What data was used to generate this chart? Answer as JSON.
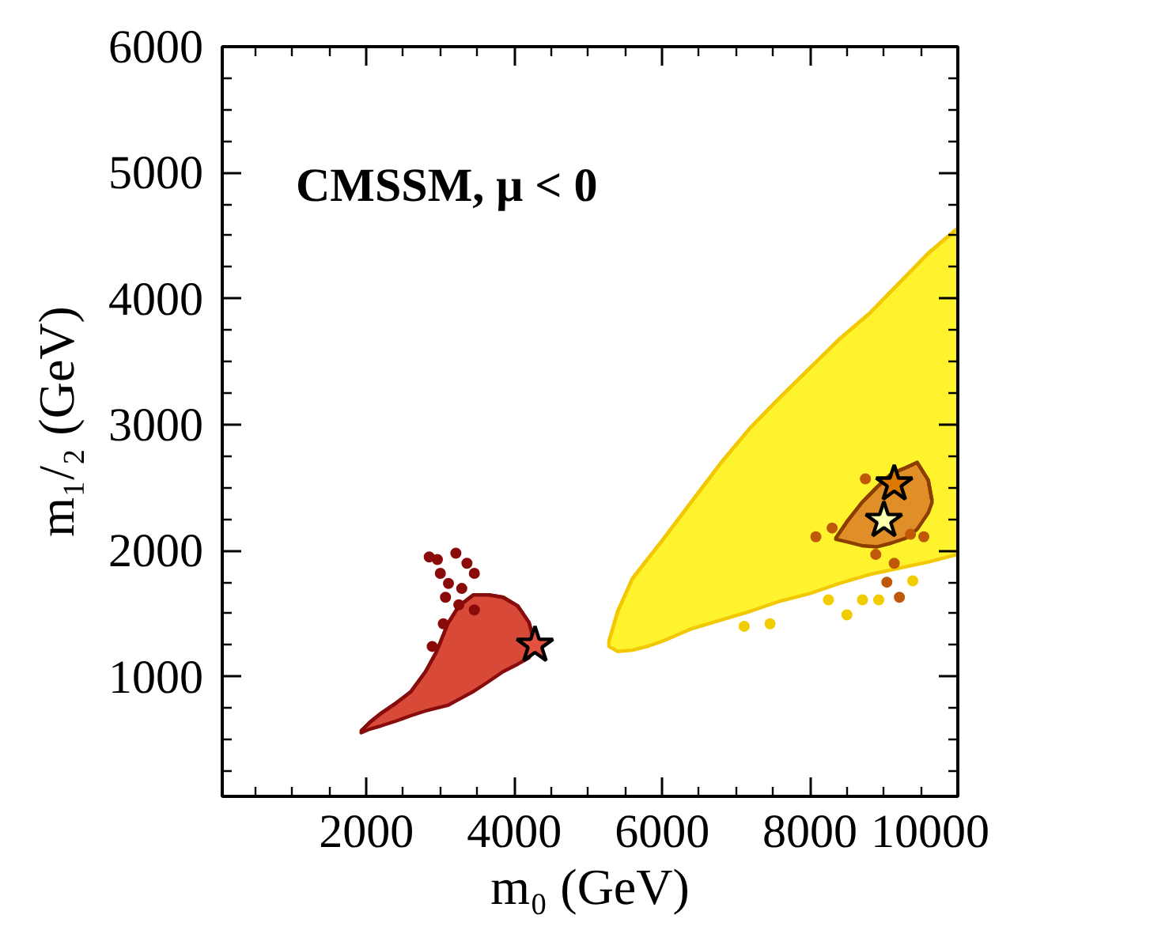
{
  "chart_data": {
    "type": "line",
    "xlabel": "m₀ (GeV)",
    "ylabel": "m₁/₂ (GeV)",
    "annotations": [
      "CMSSM, μ < 0"
    ],
    "xlim": [
      50,
      10000
    ],
    "ylim": [
      50,
      6000
    ],
    "xticks": [
      {
        "value": 500,
        "label": null
      },
      {
        "value": 1000,
        "label": null
      },
      {
        "value": 1500,
        "label": null
      },
      2000,
      {
        "value": 2500,
        "label": null
      },
      {
        "value": 3000,
        "label": null
      },
      {
        "value": 3500,
        "label": null
      },
      4000,
      {
        "value": 4500,
        "label": null
      },
      {
        "value": 5000,
        "label": null
      },
      {
        "value": 5500,
        "label": null
      },
      6000,
      {
        "value": 6500,
        "label": null
      },
      {
        "value": 7000,
        "label": null
      },
      {
        "value": 7500,
        "label": null
      },
      8000,
      {
        "value": 8500,
        "label": null
      },
      {
        "value": 9000,
        "label": null
      },
      {
        "value": 9500,
        "label": null
      },
      10000
    ],
    "yticks": [
      {
        "value": 250,
        "label": null
      },
      {
        "value": 500,
        "label": null
      },
      {
        "value": 750,
        "label": null
      },
      1000,
      {
        "value": 1250,
        "label": null
      },
      {
        "value": 1500,
        "label": null
      },
      {
        "value": 1750,
        "label": null
      },
      2000,
      {
        "value": 2250,
        "label": null
      },
      {
        "value": 2500,
        "label": null
      },
      {
        "value": 2750,
        "label": null
      },
      3000,
      {
        "value": 3250,
        "label": null
      },
      {
        "value": 3500,
        "label": null
      },
      {
        "value": 3750,
        "label": null
      },
      4000,
      {
        "value": 4250,
        "label": null
      },
      {
        "value": 4500,
        "label": null
      },
      {
        "value": 4750,
        "label": null
      },
      5000,
      {
        "value": 5250,
        "label": null
      },
      {
        "value": 5500,
        "label": null
      },
      {
        "value": 5750,
        "label": null
      },
      6000
    ],
    "series": [
      {
        "color": "#f2c800",
        "x": [
          5280,
          5400,
          5600,
          5800,
          6000,
          6400,
          6800,
          7200,
          7600,
          8000,
          8400,
          8800,
          9200,
          9600,
          10000
        ],
        "values": [
          1280,
          1520,
          1780,
          1930,
          2080,
          2390,
          2700,
          2980,
          3220,
          3450,
          3680,
          3880,
          4120,
          4360,
          4560
        ],
        "upper": [
          1280,
          1520,
          1780,
          1930,
          2080,
          2390,
          2700,
          2980,
          3220,
          3450,
          3680,
          3880,
          4120,
          4360,
          4560
        ],
        "lower": [
          1240,
          1200,
          1210,
          1240,
          1280,
          1380,
          1450,
          1520,
          1600,
          1660,
          1740,
          1810,
          1860,
          1910,
          1970
        ]
      },
      {
        "type": "scatter",
        "marker": "circle",
        "color": "#f0cc00",
        "x": [
          7110,
          7460,
          8250,
          8710,
          8930,
          9390,
          8500
        ],
        "values": [
          1400,
          1420,
          1610,
          1610,
          1610,
          1760,
          1490
        ]
      },
      {
        "color": "#8c3e00",
        "x": [
          8350,
          8500,
          8700,
          8900,
          9100,
          9300,
          9450,
          9600,
          9650
        ],
        "values": [
          2100,
          2230,
          2380,
          2500,
          2610,
          2660,
          2700,
          2560,
          2400
        ],
        "upper": [
          2100,
          2230,
          2380,
          2500,
          2610,
          2660,
          2700,
          2560,
          2400
        ],
        "lower": [
          2090,
          2070,
          2040,
          2030,
          2060,
          2100,
          2170,
          2300,
          2380
        ]
      },
      {
        "type": "scatter",
        "marker": "circle",
        "color": "#c0580a",
        "x": [
          8080,
          8300,
          8750,
          9040,
          9210,
          9140,
          9540,
          9360,
          8890
        ],
        "values": [
          2110,
          2180,
          2570,
          1750,
          1630,
          1900,
          2110,
          2130,
          1970
        ]
      },
      {
        "color": "#870c0c",
        "x": [
          1930,
          2050,
          2200,
          2400,
          2600,
          2800,
          2950,
          3100,
          3250,
          3450,
          3650,
          3850,
          4050,
          4200,
          4260
        ],
        "values": [
          570,
          640,
          710,
          790,
          880,
          1040,
          1200,
          1420,
          1560,
          1650,
          1650,
          1630,
          1560,
          1430,
          1300
        ],
        "upper": [
          570,
          640,
          710,
          790,
          880,
          1040,
          1200,
          1420,
          1560,
          1650,
          1650,
          1630,
          1560,
          1430,
          1300
        ],
        "lower": [
          555,
          585,
          610,
          648,
          690,
          728,
          750,
          772,
          820,
          883,
          960,
          1040,
          1100,
          1150,
          1210
        ]
      },
      {
        "type": "scatter",
        "marker": "circle",
        "color": "#8b0a0a",
        "x": [
          2850,
          3210,
          3360,
          3460,
          3000,
          3110,
          3290,
          3070,
          3250,
          3040,
          2890,
          3460,
          2960
        ],
        "values": [
          1950,
          1980,
          1900,
          1820,
          1820,
          1740,
          1700,
          1630,
          1570,
          1420,
          1240,
          1530,
          1930
        ]
      },
      {
        "type": "scatter",
        "marker": "star",
        "colors": [
          "#e5513f",
          "#dc7800",
          "#ffffb0"
        ],
        "x": [
          4280,
          9140,
          9000
        ],
        "values": [
          1250,
          2530,
          2240
        ]
      }
    ]
  }
}
